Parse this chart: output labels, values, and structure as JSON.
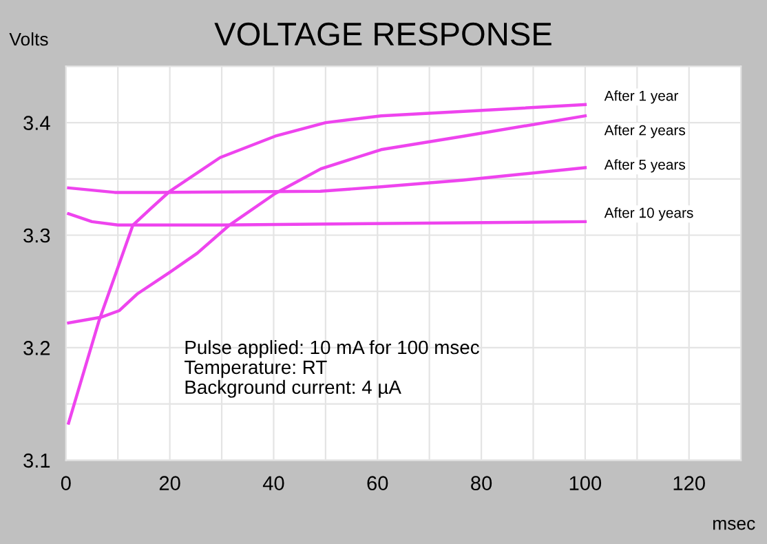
{
  "chart_data": {
    "type": "line",
    "title": "VOLTAGE RESPONSE",
    "ylabel": "Volts",
    "xlabel": "msec",
    "xlim": [
      0,
      130
    ],
    "ylim": [
      3.1,
      3.45
    ],
    "xticks": [
      0,
      {
        "value": 10,
        "label": null
      },
      20,
      {
        "value": 30,
        "label": null
      },
      40,
      {
        "value": 50,
        "label": null
      },
      60,
      {
        "value": 70,
        "label": null
      },
      80,
      {
        "value": 90,
        "label": null
      },
      100,
      {
        "value": 110,
        "label": null
      },
      120
    ],
    "yticks": [
      3.1,
      {
        "value": 3.15,
        "label": null
      },
      3.2,
      {
        "value": 3.25,
        "label": null
      },
      3.3,
      {
        "value": 3.35,
        "label": null
      },
      3.4
    ],
    "grid": true,
    "legend": false,
    "marker": "none",
    "line_style": "solid",
    "series": [
      {
        "name": "After 1 year",
        "color": "#ee44ee",
        "x": [
          0.5,
          6.3,
          12.9,
          16.4,
          20,
          29.7,
          40.3,
          50,
          60.7,
          76.6,
          100
        ],
        "values": [
          3.133,
          3.223,
          3.309,
          3.324,
          3.339,
          3.369,
          3.388,
          3.4,
          3.406,
          3.41,
          3.416
        ]
      },
      {
        "name": "After 2 years",
        "color": "#ee44ee",
        "x": [
          0.5,
          6.7,
          10.3,
          13.8,
          20,
          25.3,
          31.5,
          40.3,
          49.1,
          60.7,
          76.6,
          100
        ],
        "values": [
          3.222,
          3.227,
          3.233,
          3.248,
          3.267,
          3.284,
          3.309,
          3.337,
          3.359,
          3.376,
          3.388,
          3.406
        ]
      },
      {
        "name": "After 5 years",
        "color": "#ee44ee",
        "x": [
          0.5,
          9.4,
          18,
          49,
          60.7,
          76.6,
          100
        ],
        "values": [
          3.342,
          3.338,
          3.338,
          3.339,
          3.343,
          3.349,
          3.36
        ]
      },
      {
        "name": "After 10 years",
        "color": "#ee44ee",
        "x": [
          0.5,
          5,
          10,
          30,
          100
        ],
        "values": [
          3.319,
          3.312,
          3.309,
          3.309,
          3.312
        ]
      }
    ],
    "annotations": [
      "Pulse applied: 10 mA for 100 msec",
      "Temperature: RT",
      "Background current: 4 µA"
    ]
  }
}
